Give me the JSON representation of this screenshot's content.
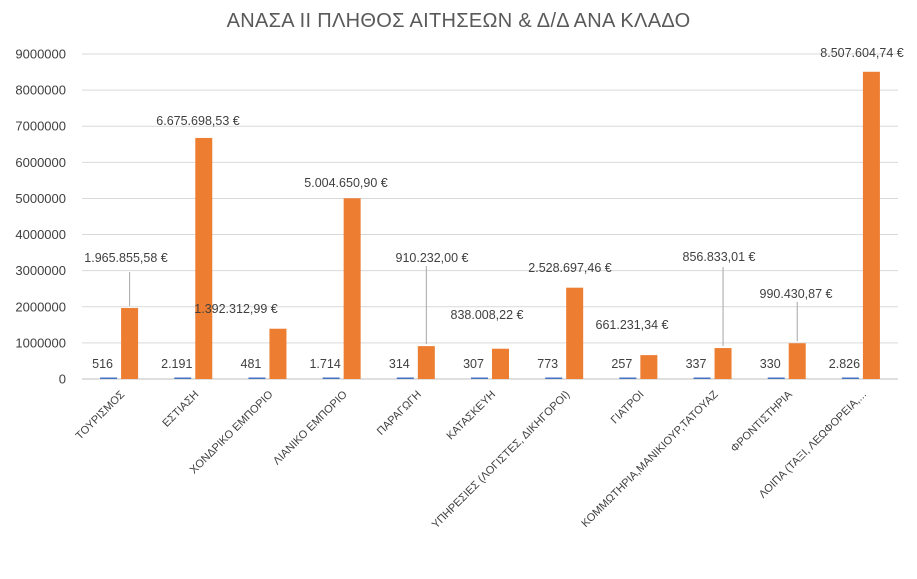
{
  "chart_data": {
    "type": "bar",
    "title": "ΑΝΑΣΑ ΙΙ ΠΛΗΘΟΣ ΑΙΤΗΣΕΩΝ & Δ/Δ ΑΝΑ ΚΛΑΔΟ",
    "categories": [
      "ΤΟΥΡΙΣΜΟΣ",
      "ΕΣΤΙΑΣΗ",
      "ΧΟΝΔΡΙΚΟ ΕΜΠΟΡΙΟ",
      "ΛΙΑΝΙΚΟ ΕΜΠΟΡΙΟ",
      "ΠΑΡΑΓΩΓΗ",
      "ΚΑΤΑΣΚΕΥΗ",
      "ΥΠΗΡΕΣΙΕΣ (ΛΟΓΙΣΤΕΣ, ΔΙΚΗΓΟΡΟΙ)",
      "ΓΙΑΤΡΟΙ",
      "ΚΟΜΜΩΤΗΡΙΑ,ΜΑΝΙΚΙΟΥΡ,ΤΑΤΟΥΑΖ",
      "ΦΡΟΝΤΙΣΤΗΡΙΑ",
      "ΛΟΙΠΑ (ΤΑΞΙ, ΛΕΩΦΟΡΕΙΑ,..."
    ],
    "series": [
      {
        "color": "#4472C4",
        "values": [
          516,
          2191,
          481,
          1714,
          314,
          307,
          773,
          257,
          337,
          330,
          2826
        ],
        "labels": [
          "516",
          "2.191",
          "481",
          "1.714",
          "314",
          "307",
          "773",
          "257",
          "337",
          "330",
          "2.826"
        ]
      },
      {
        "color": "#ED7D31",
        "values": [
          1965855.58,
          6675698.53,
          1392312.99,
          5004650.9,
          910232.0,
          838008.22,
          2528697.46,
          661231.34,
          856833.01,
          990430.87,
          8507604.74
        ],
        "labels": [
          "1.965.855,58 €",
          "6.675.698,53 €",
          "1.392.312,99 €",
          "5.004.650,90 €",
          "910.232,00 €",
          "838.008,22 €",
          "2.528.697,46 €",
          "661.231,34 €",
          "856.833,01 €",
          "990.430,87 €",
          "8.507.604,74 €"
        ]
      }
    ],
    "yticks": [
      "0",
      "1000000",
      "2000000",
      "3000000",
      "4000000",
      "5000000",
      "6000000",
      "7000000",
      "8000000",
      "9000000"
    ],
    "ylim": [
      0,
      9000000
    ],
    "grid": true,
    "legend": "none"
  }
}
